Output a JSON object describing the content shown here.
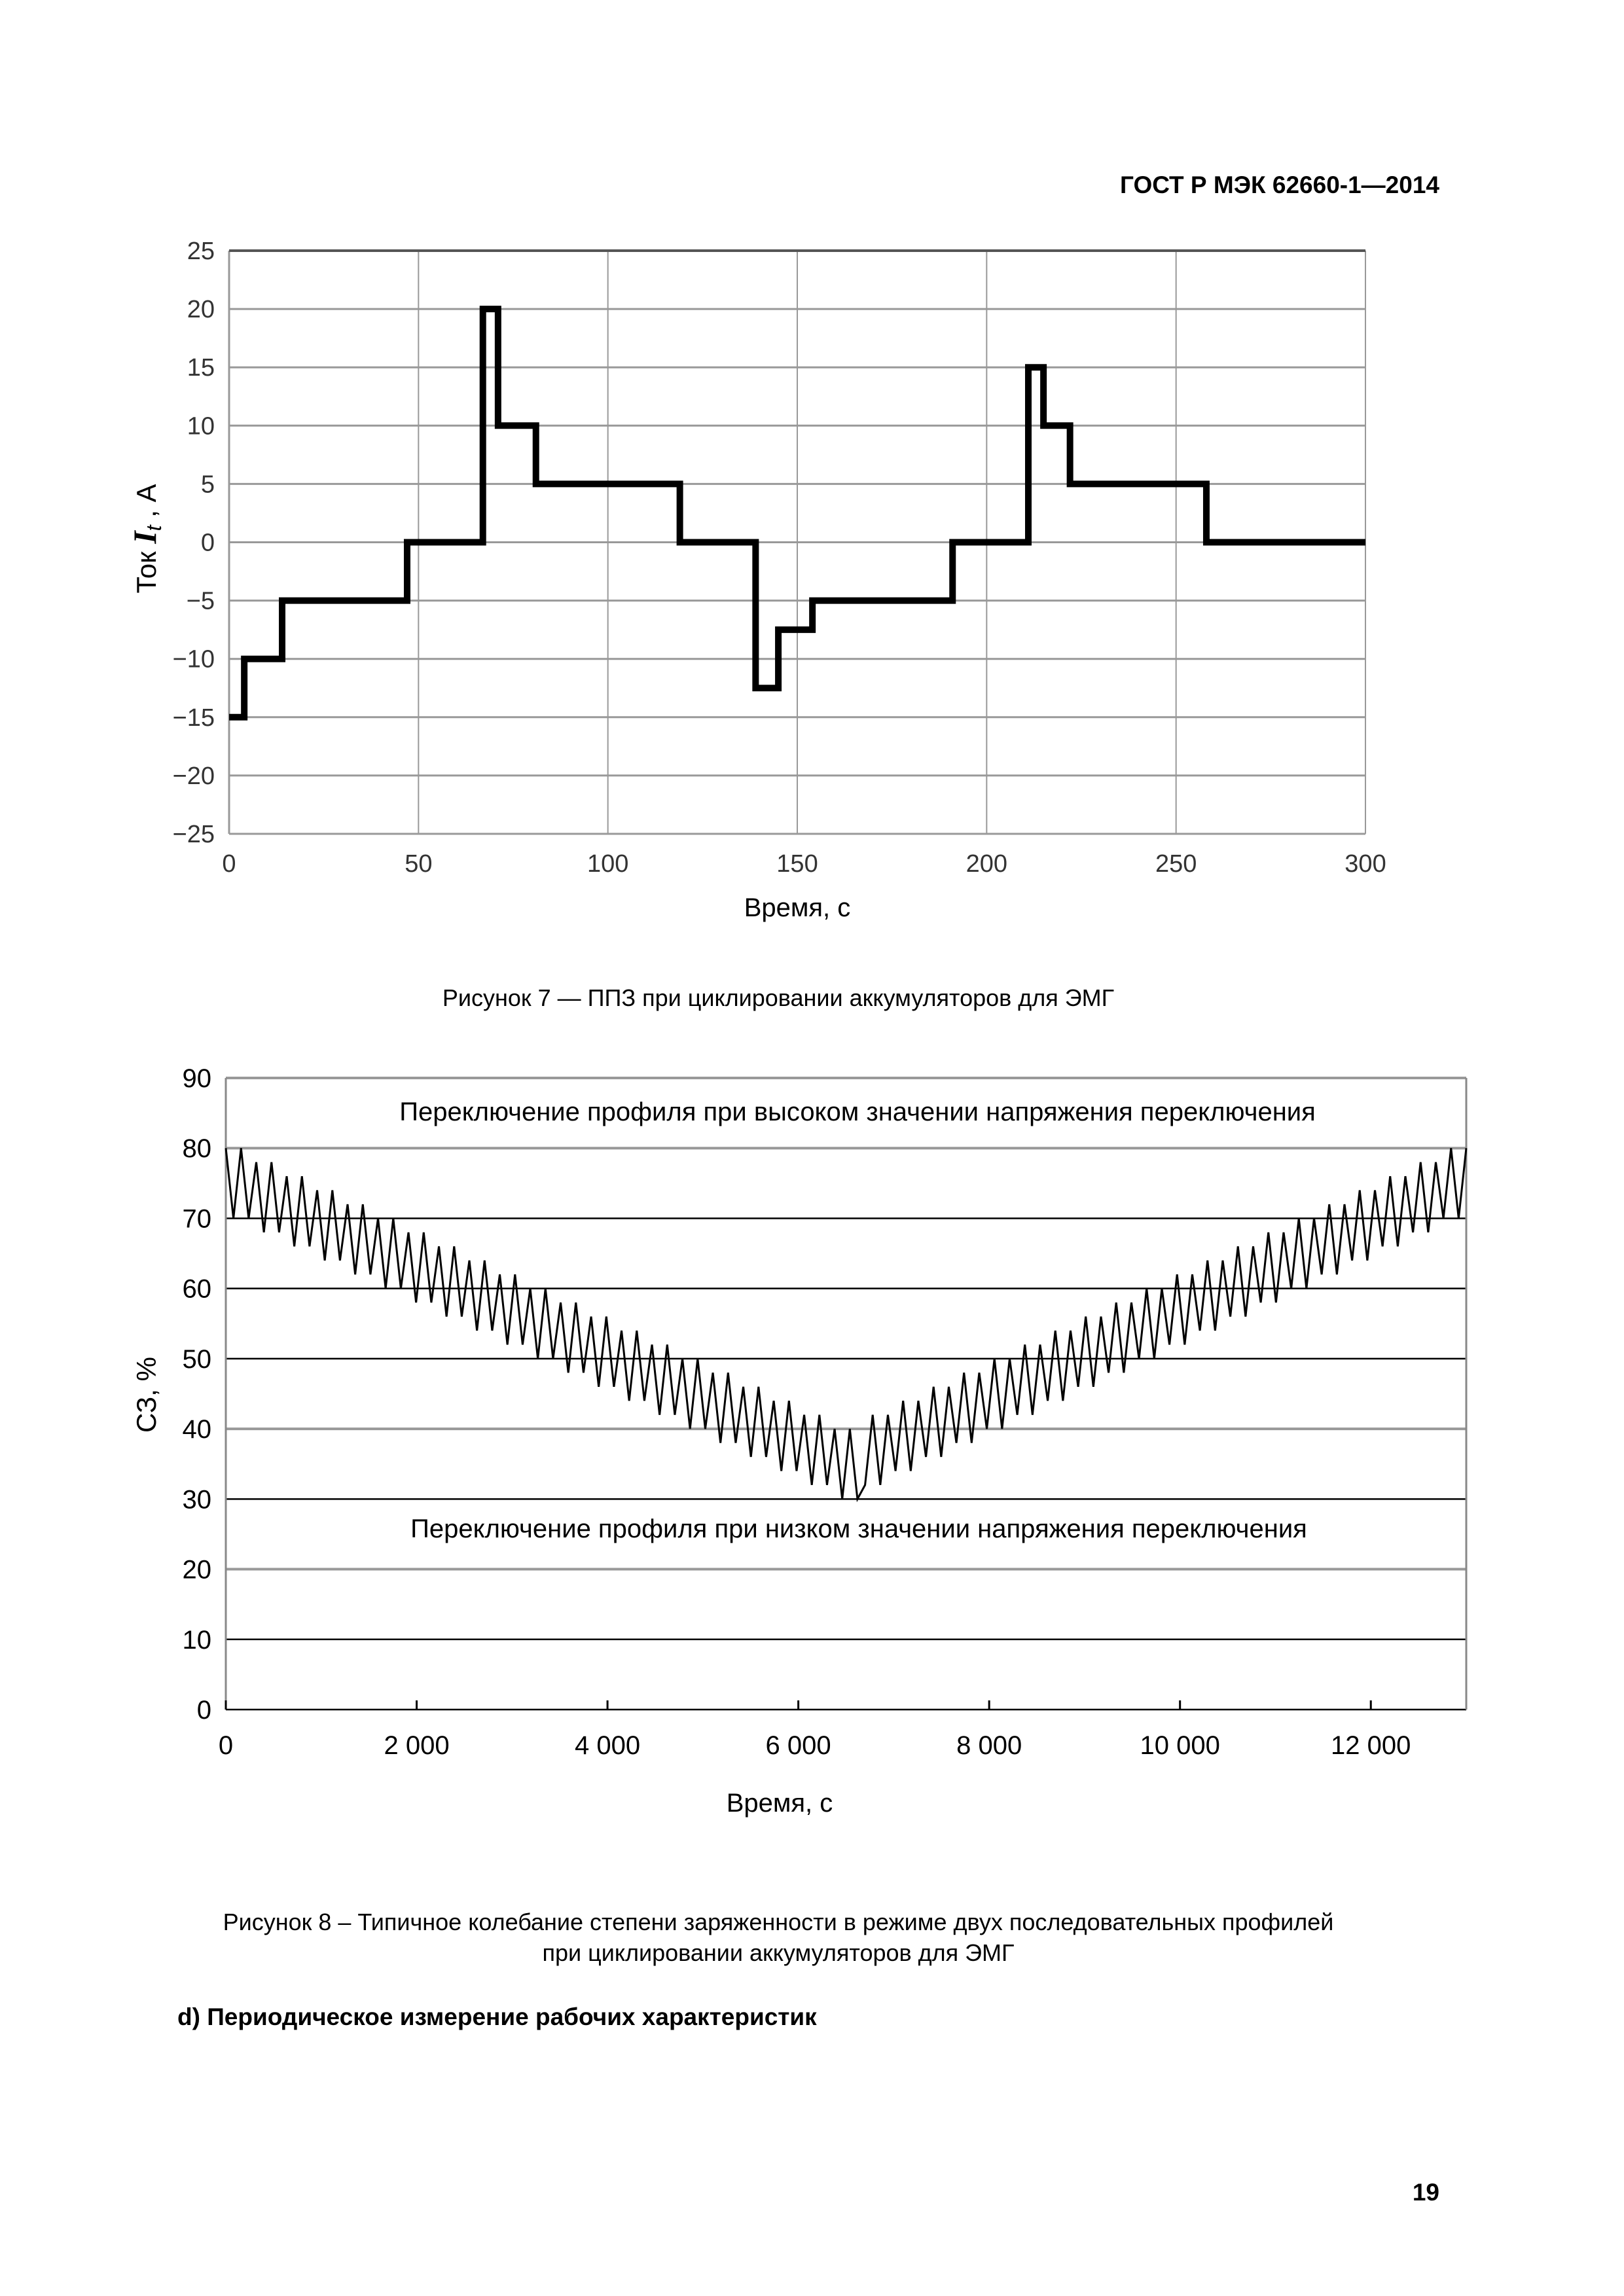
{
  "header": {
    "standard": "ГОСТ Р МЭК 62660-1—2014"
  },
  "figure7": {
    "caption": "Рисунок 7 — ППЗ при циклировании аккумуляторов для ЭМГ"
  },
  "figure8": {
    "caption_line1": "Рисунок 8 – Типичное колебание степени заряженности в режиме двух последовательных профилей",
    "caption_line2": "при циклировании аккумуляторов для ЭМГ"
  },
  "section": {
    "heading": "d) Периодическое измерение рабочих характеристик"
  },
  "footer": {
    "page_number": "19"
  },
  "chart_data": [
    {
      "type": "line",
      "style": "step",
      "title": "",
      "xlabel": "Время, с",
      "ylabel_prefix": "Ток ",
      "ylabel_symbol": "I",
      "ylabel_sub": "t",
      "ylabel_suffix": " , А",
      "xlim": [
        0,
        300
      ],
      "ylim": [
        -25,
        25
      ],
      "xticks": [
        "0",
        "50",
        "100",
        "150",
        "200",
        "250",
        "300"
      ],
      "yticks": [
        "25",
        "20",
        "15",
        "10",
        "5",
        "0",
        "−5",
        "−10",
        "−15",
        "−20",
        "−25"
      ],
      "grid": true,
      "series": [
        {
          "name": "Ток",
          "x": [
            0,
            4,
            14,
            47,
            67,
            71,
            81,
            119,
            139,
            145,
            154,
            191,
            211,
            215,
            222,
            258,
            300
          ],
          "y": [
            -15,
            -10,
            -5,
            0,
            20,
            10,
            5,
            0,
            -12.5,
            -7.5,
            -5,
            0,
            15,
            10,
            5,
            0,
            0
          ]
        }
      ]
    },
    {
      "type": "line",
      "title": "",
      "xlabel": "Время, с",
      "ylabel": "СЗ, %",
      "xlim": [
        0,
        13000
      ],
      "ylim": [
        0,
        90
      ],
      "xticks": [
        "0",
        "2 000",
        "4 000",
        "6 000",
        "8 000",
        "10 000",
        "12 000"
      ],
      "yticks": [
        "90",
        "80",
        "70",
        "60",
        "50",
        "40",
        "30",
        "20",
        "10",
        "0"
      ],
      "grid": true,
      "annotations": [
        "Переключение профиля при высоком значении напряжения переключения",
        "Переключение профиля при низком значении напряжения переключения"
      ],
      "series": [
        {
          "name": "СЗ",
          "pattern": "sawtooth",
          "start_peak": 80,
          "min_trough": 30,
          "swing": 10,
          "level_step": 2,
          "cycles_per_level": 2,
          "x_end": 13000
        }
      ]
    }
  ]
}
